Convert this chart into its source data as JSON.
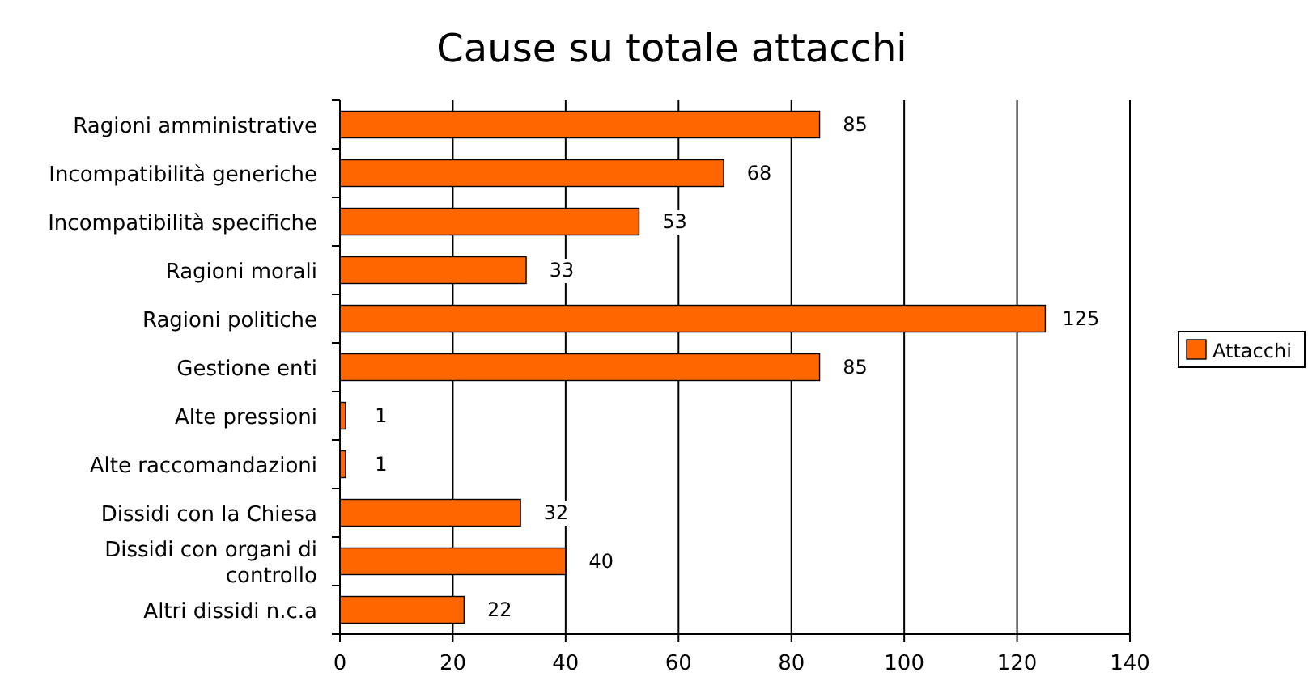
{
  "chart_data": {
    "type": "bar",
    "orientation": "horizontal",
    "title": "Cause su totale attacchi",
    "categories": [
      "Ragioni amministrative",
      "Incompatibilità generiche",
      "Incompatibilità specifiche",
      "Ragioni morali",
      "Ragioni politiche",
      "Gestione enti",
      "Alte pressioni",
      "Alte raccomandazioni",
      "Dissidi con la Chiesa",
      "Dissidi con organi di controllo",
      "Altri dissidi n.c.a"
    ],
    "series": [
      {
        "name": "Attacchi",
        "color": "#ff6600",
        "values": [
          85,
          68,
          53,
          33,
          125,
          85,
          1,
          1,
          32,
          40,
          22
        ]
      }
    ],
    "xlim": [
      0,
      140
    ],
    "xticks": [
      0,
      20,
      40,
      60,
      80,
      100,
      120,
      140
    ],
    "grid": "x",
    "legend": "right",
    "data_labels": true
  }
}
